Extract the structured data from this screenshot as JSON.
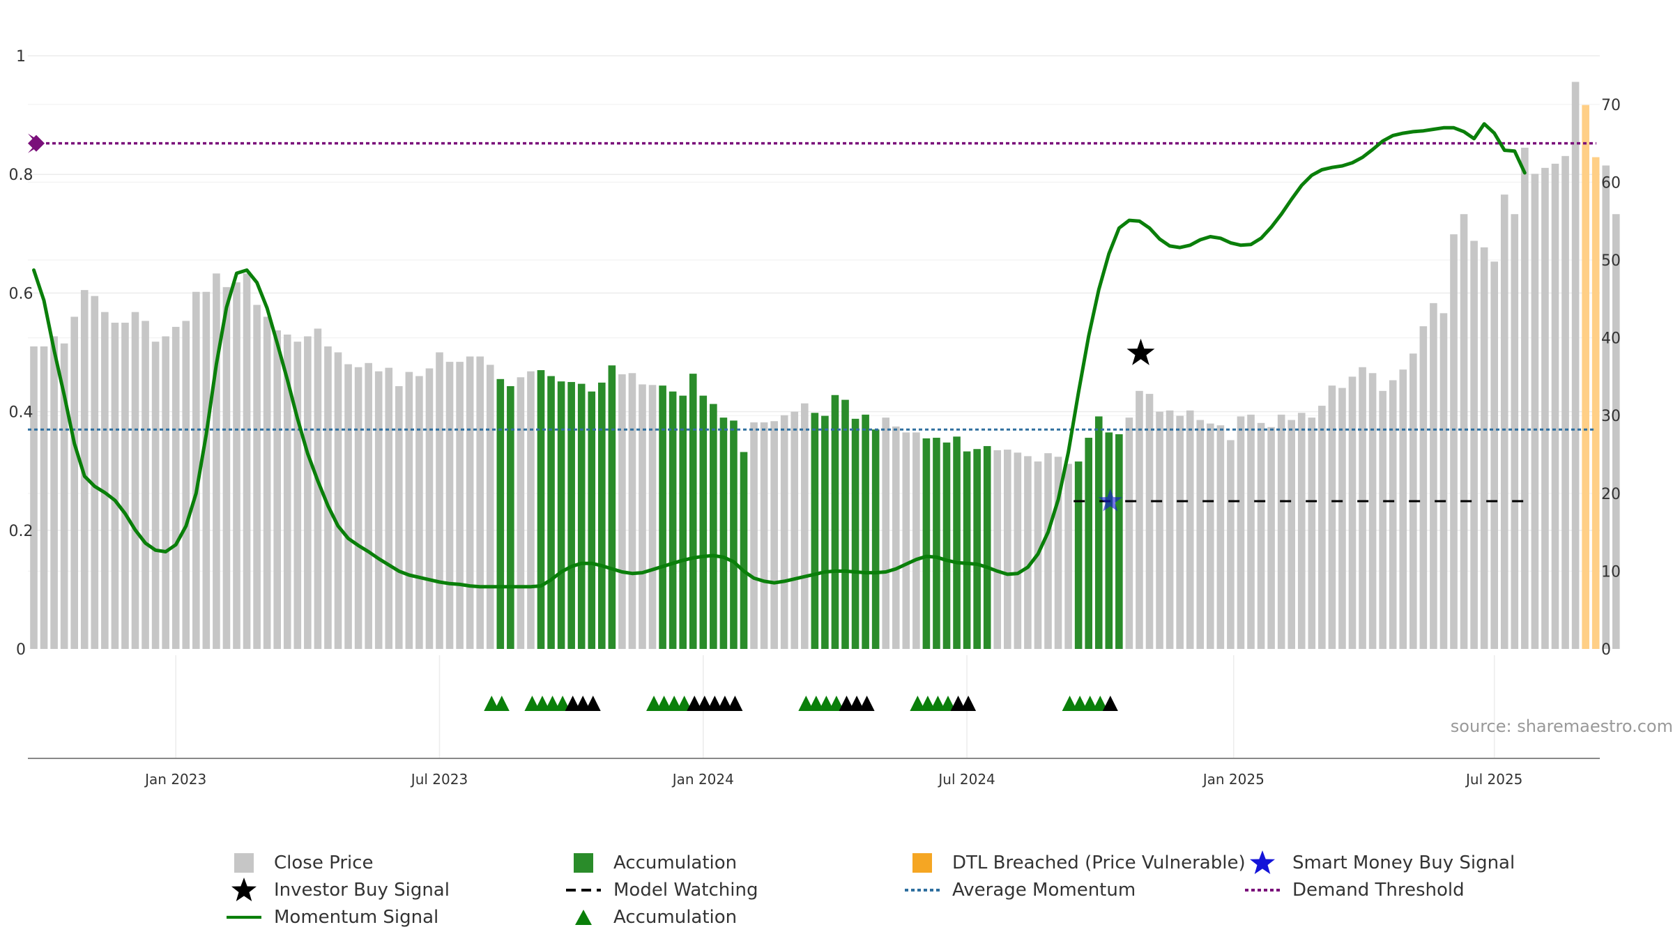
{
  "colors": {
    "close": "#c6c6c6",
    "accumulation": "#2a8c2a",
    "dtl": "#ffcf86",
    "momentum": "#0a7f0a",
    "average": "#2f6f9f",
    "demand": "#7a0f7a",
    "smart_money": "#1414d8",
    "investor": "#000000",
    "watching": "#000000",
    "tri_accum": "#0a7f0a",
    "tri_watch": "#000000"
  },
  "chart_data": {
    "type": "bar",
    "left_axis": {
      "ticks": [
        "0",
        "0.2",
        "0.4",
        "0.6",
        "0.8",
        "1"
      ],
      "ylim": [
        0,
        1
      ]
    },
    "right_axis": {
      "ticks": [
        "0",
        "10",
        "20",
        "30",
        "40",
        "50",
        "60",
        "70"
      ],
      "ylim": [
        0,
        76
      ]
    },
    "x_ticks": [
      {
        "label": "Jan 2023",
        "week": 14
      },
      {
        "label": "Jul 2023",
        "week": 40
      },
      {
        "label": "Jan 2024",
        "week": 66
      },
      {
        "label": "Jul 2024",
        "week": 92
      },
      {
        "label": "Jan 2025",
        "week": 118.3
      },
      {
        "label": "Jul 2025",
        "week": 144
      }
    ],
    "grid": true,
    "close_price": [
      0.51,
      0.51,
      0.527,
      0.515,
      0.56,
      0.605,
      0.595,
      0.568,
      0.55,
      0.55,
      0.568,
      0.553,
      0.518,
      0.527,
      0.543,
      0.553,
      0.602,
      0.602,
      0.633,
      0.61,
      0.618,
      0.633,
      0.58,
      0.56,
      0.537,
      0.53,
      0.518,
      0.527,
      0.54,
      0.51,
      0.5,
      0.48,
      0.475,
      0.482,
      0.468,
      0.474,
      0.443,
      0.467,
      0.46,
      0.473,
      0.5,
      0.484,
      0.484,
      0.493,
      0.493,
      0.479,
      0.455,
      0.443,
      0.458,
      0.468,
      0.47,
      0.46,
      0.451,
      0.45,
      0.447,
      0.434,
      0.449,
      0.478,
      0.463,
      0.465,
      0.446,
      0.445,
      0.444,
      0.434,
      0.427,
      0.464,
      0.427,
      0.413,
      0.39,
      0.385,
      0.332,
      0.382,
      0.382,
      0.384,
      0.394,
      0.4,
      0.414,
      0.398,
      0.393,
      0.428,
      0.42,
      0.388,
      0.395,
      0.37,
      0.39,
      0.375,
      0.365,
      0.365,
      0.355,
      0.356,
      0.348,
      0.358,
      0.333,
      0.337,
      0.342,
      0.335,
      0.336,
      0.331,
      0.325,
      0.316,
      0.33,
      0.324,
      0.312,
      0.316,
      0.356,
      0.392,
      0.365,
      0.362,
      0.39,
      0.435,
      0.43,
      0.4,
      0.402,
      0.393,
      0.402,
      0.386,
      0.38,
      0.377,
      0.352,
      0.392,
      0.395,
      0.381,
      0.374,
      0.395,
      0.386,
      0.398,
      0.39,
      0.41,
      0.444,
      0.44,
      0.459,
      0.475,
      0.465,
      0.435,
      0.453,
      0.471,
      0.498,
      0.544,
      0.583,
      0.566,
      0.699,
      0.733,
      0.688,
      0.677,
      0.653,
      0.766,
      0.733,
      0.845,
      0.801,
      0.811,
      0.818,
      0.831,
      0.956,
      0.917,
      0.829,
      0.815,
      0.733
    ],
    "accumulation_weeks": [
      46,
      47,
      50,
      51,
      52,
      53,
      54,
      55,
      56,
      57,
      62,
      63,
      64,
      65,
      66,
      67,
      68,
      69,
      70,
      77,
      78,
      79,
      80,
      81,
      82,
      83,
      88,
      89,
      90,
      91,
      92,
      93,
      94,
      103,
      104,
      105,
      106,
      107
    ],
    "dtl_breached_weeks": [
      153,
      154
    ],
    "momentum_signal": [
      [
        0,
        48.7
      ],
      [
        1,
        44.8
      ],
      [
        2,
        38.4
      ],
      [
        3,
        32.6
      ],
      [
        4,
        26.4
      ],
      [
        5,
        22.2
      ],
      [
        6,
        20.9
      ],
      [
        7,
        20.1
      ],
      [
        8,
        19.1
      ],
      [
        9,
        17.4
      ],
      [
        10,
        15.3
      ],
      [
        11,
        13.6
      ],
      [
        12,
        12.7
      ],
      [
        13,
        12.5
      ],
      [
        14,
        13.4
      ],
      [
        15,
        15.8
      ],
      [
        16,
        20.0
      ],
      [
        17,
        27.6
      ],
      [
        18,
        36.6
      ],
      [
        19,
        43.9
      ],
      [
        20,
        48.3
      ],
      [
        21,
        48.7
      ],
      [
        22,
        47.1
      ],
      [
        23,
        43.8
      ],
      [
        24,
        39.3
      ],
      [
        25,
        34.6
      ],
      [
        26,
        29.6
      ],
      [
        27,
        25.1
      ],
      [
        28,
        21.6
      ],
      [
        29,
        18.4
      ],
      [
        30,
        15.8
      ],
      [
        31,
        14.2
      ],
      [
        32,
        13.3
      ],
      [
        33,
        12.5
      ],
      [
        34,
        11.6
      ],
      [
        35,
        10.8
      ],
      [
        36,
        10.0
      ],
      [
        37,
        9.5
      ],
      [
        38,
        9.2
      ],
      [
        39,
        8.9
      ],
      [
        40,
        8.6
      ],
      [
        41,
        8.4
      ],
      [
        42,
        8.3
      ],
      [
        43,
        8.1
      ],
      [
        44,
        8.0
      ],
      [
        45,
        8.0
      ],
      [
        46,
        8.0
      ],
      [
        47,
        8.0
      ],
      [
        48,
        8.0
      ],
      [
        49,
        8.0
      ],
      [
        50,
        8.1
      ],
      [
        51,
        8.9
      ],
      [
        52,
        9.9
      ],
      [
        53,
        10.6
      ],
      [
        54,
        11.0
      ],
      [
        55,
        11.0
      ],
      [
        56,
        10.7
      ],
      [
        57,
        10.3
      ],
      [
        58,
        9.9
      ],
      [
        59,
        9.7
      ],
      [
        60,
        9.8
      ],
      [
        61,
        10.2
      ],
      [
        62,
        10.6
      ],
      [
        63,
        11.0
      ],
      [
        64,
        11.4
      ],
      [
        65,
        11.7
      ],
      [
        66,
        11.9
      ],
      [
        67,
        12.0
      ],
      [
        68,
        11.8
      ],
      [
        69,
        11.2
      ],
      [
        70,
        10.0
      ],
      [
        71,
        9.1
      ],
      [
        72,
        8.7
      ],
      [
        73,
        8.5
      ],
      [
        74,
        8.7
      ],
      [
        75,
        9.0
      ],
      [
        76,
        9.3
      ],
      [
        77,
        9.6
      ],
      [
        78,
        9.9
      ],
      [
        79,
        10.0
      ],
      [
        80,
        10.0
      ],
      [
        81,
        9.9
      ],
      [
        82,
        9.8
      ],
      [
        83,
        9.8
      ],
      [
        84,
        9.9
      ],
      [
        85,
        10.3
      ],
      [
        86,
        10.9
      ],
      [
        87,
        11.5
      ],
      [
        88,
        11.9
      ],
      [
        89,
        11.8
      ],
      [
        90,
        11.4
      ],
      [
        91,
        11.1
      ],
      [
        92,
        11.0
      ],
      [
        93,
        10.9
      ],
      [
        94,
        10.5
      ],
      [
        95,
        10.0
      ],
      [
        96,
        9.6
      ],
      [
        97,
        9.7
      ],
      [
        98,
        10.5
      ],
      [
        99,
        12.2
      ],
      [
        100,
        15.0
      ],
      [
        101,
        19.2
      ],
      [
        102,
        25.3
      ],
      [
        103,
        33.0
      ],
      [
        104,
        40.2
      ],
      [
        105,
        46.2
      ],
      [
        106,
        50.8
      ],
      [
        107,
        54.1
      ],
      [
        108,
        55.1
      ],
      [
        109,
        55.0
      ],
      [
        110,
        54.1
      ],
      [
        111,
        52.7
      ],
      [
        112,
        51.8
      ],
      [
        113,
        51.6
      ],
      [
        114,
        51.9
      ],
      [
        115,
        52.6
      ],
      [
        116,
        53.0
      ],
      [
        117,
        52.8
      ],
      [
        118,
        52.2
      ],
      [
        119,
        51.9
      ],
      [
        120,
        52.0
      ],
      [
        121,
        52.8
      ],
      [
        122,
        54.2
      ],
      [
        123,
        55.9
      ],
      [
        124,
        57.8
      ],
      [
        125,
        59.6
      ],
      [
        126,
        60.9
      ],
      [
        127,
        61.6
      ],
      [
        128,
        61.9
      ],
      [
        129,
        62.1
      ],
      [
        130,
        62.5
      ],
      [
        131,
        63.2
      ],
      [
        132,
        64.2
      ],
      [
        133,
        65.3
      ],
      [
        134,
        66.0
      ],
      [
        135,
        66.3
      ],
      [
        136,
        66.5
      ],
      [
        137,
        66.6
      ],
      [
        138,
        66.8
      ],
      [
        139,
        67.0
      ],
      [
        140,
        67.0
      ],
      [
        141,
        66.5
      ],
      [
        142,
        65.6
      ],
      [
        143,
        67.5
      ],
      [
        144,
        66.3
      ],
      [
        145,
        64.1
      ],
      [
        146,
        64.0
      ],
      [
        147,
        61.2
      ]
    ],
    "average_momentum": 28.2,
    "demand_threshold": 65,
    "model_watching_level": 19.0,
    "model_watching_range": [
      103,
      147
    ],
    "investor_buy_signal": {
      "week": 109,
      "value": 38.0
    },
    "smart_money_buy_signal": {
      "week": 106,
      "value": 19.0
    },
    "accumulation_triangles": [
      45,
      46,
      49,
      50,
      51,
      52,
      61,
      62,
      63,
      64,
      76,
      77,
      78,
      79,
      87,
      88,
      89,
      90,
      102,
      103,
      104,
      105
    ],
    "watching_triangles": [
      53,
      54,
      55,
      65,
      66,
      67,
      68,
      69,
      80,
      81,
      82,
      91,
      92,
      106
    ]
  },
  "source_text": "source: sharemaestro.com",
  "legend": [
    {
      "label": "Close Price",
      "icon": "square"
    },
    {
      "label": "Accumulation",
      "icon": "square"
    },
    {
      "label": "DTL Breached (Price Vulnerable)",
      "icon": "square"
    },
    {
      "label": "Smart Money Buy Signal",
      "icon": "star"
    },
    {
      "label": "Investor Buy Signal",
      "icon": "star"
    },
    {
      "label": "Model Watching",
      "icon": "dashed-line"
    },
    {
      "label": "Average Momentum",
      "icon": "dotted-line"
    },
    {
      "label": "Demand Threshold",
      "icon": "dotted-line"
    },
    {
      "label": "Momentum Signal",
      "icon": "solid-line"
    },
    {
      "label": "Accumulation",
      "icon": "triangle"
    }
  ]
}
